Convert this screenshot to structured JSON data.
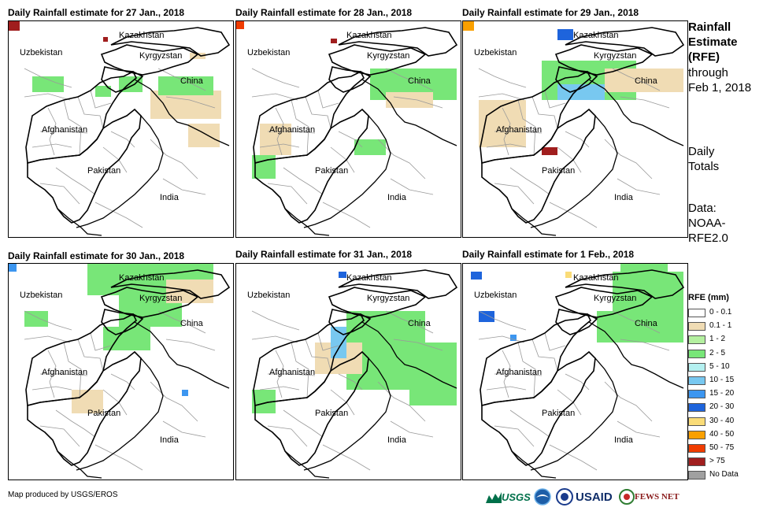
{
  "panels": [
    {
      "title": "Daily Rainfall estimate for 27 Jan., 2018"
    },
    {
      "title": "Daily Rainfall estimate for 28 Jan., 2018"
    },
    {
      "title": "Daily Rainfall estimate for 29 Jan., 2018"
    },
    {
      "title": "Daily Rainfall estimate for 30 Jan., 2018"
    },
    {
      "title": "Daily Rainfall estimate for 31 Jan., 2018"
    },
    {
      "title": "Daily Rainfall estimate for 1 Feb., 2018"
    }
  ],
  "places": {
    "kazakhstan": "Kazakhstan",
    "uzbekistan": "Uzbekistan",
    "kyrgyzstan": "Kyrgyzstan",
    "china": "China",
    "afghanistan": "Afghanistan",
    "pakistan": "Pakistan",
    "india": "India"
  },
  "side": {
    "heading": [
      "Rainfall",
      "Estimate",
      "(RFE)"
    ],
    "through": "through",
    "date": "Feb 1, 2018",
    "daily": "Daily",
    "totals": "Totals",
    "data": "Data:",
    "source1": "NOAA-",
    "source2": "RFE2.0"
  },
  "legend": {
    "title": "RFE (mm)",
    "items": [
      {
        "label": "0 - 0.1",
        "color": "#ffffff"
      },
      {
        "label": "0.1 - 1",
        "color": "#f0dcb4"
      },
      {
        "label": "1 - 2",
        "color": "#b4f0a0"
      },
      {
        "label": "2 - 5",
        "color": "#78e678"
      },
      {
        "label": "5 - 10",
        "color": "#b4f0f0"
      },
      {
        "label": "10 - 15",
        "color": "#78c8f0"
      },
      {
        "label": "15 - 20",
        "color": "#3c96f0"
      },
      {
        "label": "20 - 30",
        "color": "#1e64dc"
      },
      {
        "label": "30 - 40",
        "color": "#fadc78"
      },
      {
        "label": "40 - 50",
        "color": "#faa000"
      },
      {
        "label": "50 - 75",
        "color": "#f03c00"
      },
      {
        "label": "> 75",
        "color": "#a01e1e"
      },
      {
        "label": "No Data",
        "color": "#a0a0a0"
      }
    ]
  },
  "credit": "Map produced by USGS/EROS",
  "logos": {
    "usgs": "USGS",
    "usaid": "USAID",
    "fewsnet": "FEWS NET"
  }
}
